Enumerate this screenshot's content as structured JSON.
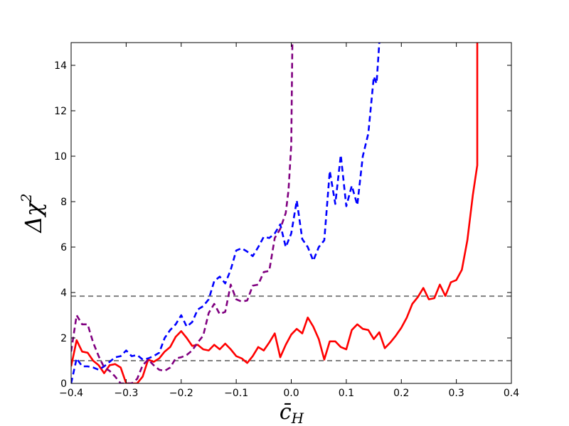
{
  "chart_data": {
    "type": "line",
    "xlabel_main": "c̄",
    "xlabel_sub": "H",
    "ylabel_main": "Δχ",
    "ylabel_sup": "2",
    "xlim": [
      -0.4,
      0.4
    ],
    "ylim": [
      0,
      15
    ],
    "xticks": [
      -0.4,
      -0.3,
      -0.2,
      -0.1,
      0.0,
      0.1,
      0.2,
      0.3,
      0.4
    ],
    "xtick_labels": [
      "−0.4",
      "−0.3",
      "−0.2",
      "−0.1",
      "0.0",
      "0.1",
      "0.2",
      "0.3",
      "0.4"
    ],
    "yticks": [
      0,
      2,
      4,
      6,
      8,
      10,
      12,
      14
    ],
    "ytick_labels": [
      "0",
      "2",
      "4",
      "6",
      "8",
      "10",
      "12",
      "14"
    ],
    "hlines": [
      {
        "y": 1.0,
        "color": "#808080",
        "style": "dashed"
      },
      {
        "y": 3.84,
        "color": "#808080",
        "style": "dashed"
      }
    ],
    "series": [
      {
        "color": "#ff0000",
        "style": "solid",
        "points": [
          [
            -0.4,
            0.75
          ],
          [
            -0.39,
            1.9
          ],
          [
            -0.38,
            1.4
          ],
          [
            -0.37,
            1.35
          ],
          [
            -0.36,
            1.0
          ],
          [
            -0.35,
            0.8
          ],
          [
            -0.34,
            0.45
          ],
          [
            -0.33,
            0.8
          ],
          [
            -0.32,
            0.85
          ],
          [
            -0.31,
            0.7
          ],
          [
            -0.3,
            0.0
          ],
          [
            -0.29,
            0.0
          ],
          [
            -0.28,
            0.0
          ],
          [
            -0.27,
            0.3
          ],
          [
            -0.26,
            1.05
          ],
          [
            -0.25,
            0.95
          ],
          [
            -0.24,
            1.1
          ],
          [
            -0.23,
            1.4
          ],
          [
            -0.22,
            1.6
          ],
          [
            -0.21,
            2.05
          ],
          [
            -0.2,
            2.3
          ],
          [
            -0.19,
            2.0
          ],
          [
            -0.18,
            1.65
          ],
          [
            -0.17,
            1.7
          ],
          [
            -0.16,
            1.5
          ],
          [
            -0.15,
            1.45
          ],
          [
            -0.14,
            1.7
          ],
          [
            -0.13,
            1.5
          ],
          [
            -0.12,
            1.75
          ],
          [
            -0.11,
            1.5
          ],
          [
            -0.1,
            1.2
          ],
          [
            -0.09,
            1.1
          ],
          [
            -0.08,
            0.9
          ],
          [
            -0.07,
            1.2
          ],
          [
            -0.06,
            1.6
          ],
          [
            -0.05,
            1.45
          ],
          [
            -0.04,
            1.8
          ],
          [
            -0.03,
            2.2
          ],
          [
            -0.02,
            1.15
          ],
          [
            -0.01,
            1.7
          ],
          [
            0.0,
            2.15
          ],
          [
            0.01,
            2.4
          ],
          [
            0.02,
            2.2
          ],
          [
            0.03,
            2.9
          ],
          [
            0.04,
            2.5
          ],
          [
            0.05,
            1.95
          ],
          [
            0.06,
            1.05
          ],
          [
            0.07,
            1.85
          ],
          [
            0.08,
            1.85
          ],
          [
            0.09,
            1.6
          ],
          [
            0.1,
            1.5
          ],
          [
            0.11,
            2.35
          ],
          [
            0.12,
            2.6
          ],
          [
            0.13,
            2.4
          ],
          [
            0.14,
            2.35
          ],
          [
            0.15,
            1.95
          ],
          [
            0.16,
            2.25
          ],
          [
            0.17,
            1.55
          ],
          [
            0.18,
            1.8
          ],
          [
            0.19,
            2.1
          ],
          [
            0.2,
            2.45
          ],
          [
            0.21,
            2.9
          ],
          [
            0.22,
            3.5
          ],
          [
            0.23,
            3.8
          ],
          [
            0.24,
            4.2
          ],
          [
            0.25,
            3.7
          ],
          [
            0.26,
            3.75
          ],
          [
            0.27,
            4.35
          ],
          [
            0.28,
            3.85
          ],
          [
            0.29,
            4.45
          ],
          [
            0.3,
            4.55
          ],
          [
            0.31,
            5.0
          ],
          [
            0.32,
            6.3
          ],
          [
            0.33,
            8.3
          ],
          [
            0.338,
            9.6
          ],
          [
            0.338,
            15.0
          ]
        ]
      },
      {
        "color": "#0000ff",
        "style": "dashed",
        "points": [
          [
            -0.4,
            0.0
          ],
          [
            -0.39,
            1.1
          ],
          [
            -0.38,
            0.75
          ],
          [
            -0.37,
            0.75
          ],
          [
            -0.36,
            0.7
          ],
          [
            -0.35,
            0.6
          ],
          [
            -0.34,
            0.75
          ],
          [
            -0.33,
            0.95
          ],
          [
            -0.32,
            1.15
          ],
          [
            -0.31,
            1.2
          ],
          [
            -0.3,
            1.45
          ],
          [
            -0.29,
            1.2
          ],
          [
            -0.28,
            1.25
          ],
          [
            -0.27,
            1.05
          ],
          [
            -0.26,
            1.1
          ],
          [
            -0.25,
            1.2
          ],
          [
            -0.24,
            1.35
          ],
          [
            -0.23,
            2.0
          ],
          [
            -0.22,
            2.35
          ],
          [
            -0.21,
            2.6
          ],
          [
            -0.2,
            3.0
          ],
          [
            -0.19,
            2.5
          ],
          [
            -0.18,
            2.7
          ],
          [
            -0.17,
            3.25
          ],
          [
            -0.16,
            3.4
          ],
          [
            -0.15,
            3.7
          ],
          [
            -0.14,
            4.5
          ],
          [
            -0.13,
            4.7
          ],
          [
            -0.12,
            4.4
          ],
          [
            -0.11,
            5.0
          ],
          [
            -0.1,
            5.85
          ],
          [
            -0.09,
            5.95
          ],
          [
            -0.08,
            5.8
          ],
          [
            -0.07,
            5.6
          ],
          [
            -0.06,
            6.0
          ],
          [
            -0.05,
            6.45
          ],
          [
            -0.04,
            6.4
          ],
          [
            -0.03,
            6.6
          ],
          [
            -0.02,
            7.0
          ],
          [
            -0.01,
            6.0
          ],
          [
            0.0,
            6.6
          ],
          [
            0.01,
            8.05
          ],
          [
            0.02,
            6.35
          ],
          [
            0.03,
            6.0
          ],
          [
            0.04,
            5.4
          ],
          [
            0.05,
            6.0
          ],
          [
            0.06,
            6.3
          ],
          [
            0.07,
            9.35
          ],
          [
            0.08,
            7.9
          ],
          [
            0.09,
            10.05
          ],
          [
            0.1,
            7.8
          ],
          [
            0.11,
            8.7
          ],
          [
            0.12,
            7.85
          ],
          [
            0.13,
            10.0
          ],
          [
            0.14,
            11.0
          ],
          [
            0.15,
            13.5
          ],
          [
            0.155,
            13.2
          ],
          [
            0.16,
            15.0
          ]
        ]
      },
      {
        "color": "#800080",
        "style": "dashed",
        "points": [
          [
            -0.4,
            1.4
          ],
          [
            -0.39,
            3.0
          ],
          [
            -0.38,
            2.6
          ],
          [
            -0.37,
            2.6
          ],
          [
            -0.36,
            1.8
          ],
          [
            -0.35,
            1.2
          ],
          [
            -0.34,
            0.7
          ],
          [
            -0.33,
            0.55
          ],
          [
            -0.32,
            0.3
          ],
          [
            -0.31,
            0.0
          ],
          [
            -0.3,
            0.0
          ],
          [
            -0.29,
            0.0
          ],
          [
            -0.28,
            0.2
          ],
          [
            -0.27,
            0.8
          ],
          [
            -0.26,
            1.05
          ],
          [
            -0.25,
            0.8
          ],
          [
            -0.24,
            0.6
          ],
          [
            -0.23,
            0.55
          ],
          [
            -0.22,
            0.7
          ],
          [
            -0.21,
            1.1
          ],
          [
            -0.2,
            1.15
          ],
          [
            -0.19,
            1.25
          ],
          [
            -0.18,
            1.45
          ],
          [
            -0.17,
            1.8
          ],
          [
            -0.16,
            2.1
          ],
          [
            -0.15,
            3.1
          ],
          [
            -0.14,
            3.5
          ],
          [
            -0.13,
            3.05
          ],
          [
            -0.12,
            3.15
          ],
          [
            -0.11,
            4.35
          ],
          [
            -0.1,
            3.7
          ],
          [
            -0.09,
            3.6
          ],
          [
            -0.08,
            3.65
          ],
          [
            -0.07,
            4.3
          ],
          [
            -0.06,
            4.35
          ],
          [
            -0.05,
            4.9
          ],
          [
            -0.04,
            4.95
          ],
          [
            -0.03,
            6.4
          ],
          [
            -0.02,
            6.8
          ],
          [
            -0.01,
            7.5
          ],
          [
            -0.005,
            8.5
          ],
          [
            0.0,
            10.5
          ],
          [
            0.002,
            15.0
          ]
        ]
      }
    ]
  }
}
